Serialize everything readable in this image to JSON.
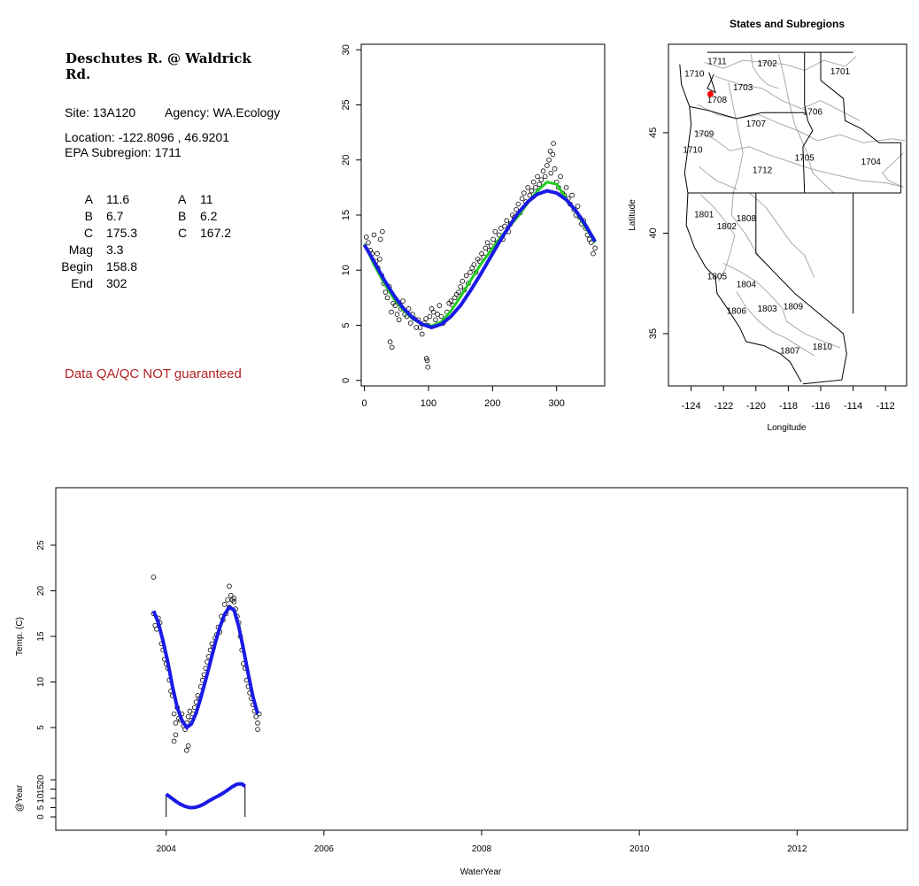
{
  "site": {
    "title": "Deschutes R. @ Waldrick Rd.",
    "site_label": "Site: 13A120",
    "agency_label": "Agency: WA.Ecology",
    "location_label": "Location: -122.8096 , 46.9201",
    "subregion_label": "EPA Subregion: 1711"
  },
  "params": {
    "rows": [
      {
        "name": "A",
        "v1": "11.6",
        "name2": "A",
        "v2": "11"
      },
      {
        "name": "B",
        "v1": "6.7",
        "name2": "B",
        "v2": "6.2"
      },
      {
        "name": "C",
        "v1": "175.3",
        "name2": "C",
        "v2": "167.2"
      },
      {
        "name": "Mag",
        "v1": "3.3",
        "name2": "",
        "v2": ""
      },
      {
        "name": "Begin",
        "v1": "158.8",
        "name2": "",
        "v2": ""
      },
      {
        "name": "End",
        "v1": "302",
        "name2": "",
        "v2": ""
      }
    ]
  },
  "disclaimer": "Data QA/QC NOT guaranteed",
  "colors": {
    "points": "#000000",
    "fit_blue": "#1a1ae6",
    "fit_green": "#22cc22",
    "site_marker": "#ff0000",
    "disclaimer": "#b22222",
    "map_lines": "#aaaaaa"
  },
  "chart_data": [
    {
      "type": "scatter",
      "title": "",
      "xlabel": "",
      "ylabel": "",
      "xlim": [
        -5,
        375
      ],
      "ylim": [
        -0.5,
        30.5
      ],
      "xticks": [
        0,
        100,
        200,
        300
      ],
      "yticks": [
        0,
        5,
        10,
        15,
        20,
        25,
        30
      ],
      "points": {
        "x": [
          3,
          6,
          9,
          12,
          15,
          18,
          21,
          24,
          27,
          30,
          33,
          36,
          39,
          42,
          45,
          48,
          51,
          54,
          57,
          60,
          63,
          66,
          69,
          72,
          75,
          78,
          81,
          84,
          87,
          90,
          93,
          96,
          99,
          102,
          105,
          108,
          111,
          114,
          117,
          120,
          123,
          126,
          129,
          132,
          135,
          138,
          141,
          144,
          147,
          150,
          153,
          156,
          159,
          162,
          165,
          168,
          171,
          174,
          177,
          180,
          183,
          186,
          189,
          192,
          195,
          198,
          201,
          204,
          207,
          210,
          213,
          216,
          219,
          222,
          225,
          228,
          231,
          234,
          237,
          240,
          243,
          246,
          249,
          252,
          255,
          258,
          261,
          264,
          267,
          270,
          273,
          276,
          279,
          282,
          285,
          288,
          291,
          294,
          297,
          300,
          303,
          306,
          309,
          312,
          315,
          318,
          321,
          324,
          327,
          330,
          333,
          336,
          339,
          342,
          345,
          348,
          351,
          354,
          357,
          360,
          40,
          43,
          97,
          99,
          98,
          20,
          25,
          28,
          295,
          290
        ],
        "y": [
          13,
          12.5,
          11.8,
          11.5,
          13.2,
          10.8,
          10.2,
          11,
          9.5,
          8.8,
          8,
          7.5,
          8.5,
          6.2,
          7,
          6.8,
          6,
          5.5,
          6.5,
          7.2,
          6,
          5.8,
          6.5,
          5.2,
          6,
          5.6,
          4.8,
          5.5,
          4.8,
          4.2,
          5.2,
          5.6,
          5,
          5.8,
          6.5,
          6.2,
          5.5,
          6,
          6.8,
          5.8,
          5.2,
          5.5,
          6.2,
          7,
          7.2,
          6.8,
          7.5,
          7.8,
          8,
          8.5,
          9,
          8.2,
          9.5,
          8.8,
          9.8,
          10.2,
          10.5,
          9.8,
          11,
          10.8,
          11.5,
          11.2,
          12,
          12.5,
          11.8,
          12.2,
          12.8,
          13.5,
          12.5,
          13.2,
          13.8,
          12.8,
          14,
          14.5,
          13.5,
          14.2,
          15,
          14.8,
          15.5,
          16,
          15.2,
          16.5,
          17,
          16.2,
          17.5,
          16.8,
          17.2,
          18,
          17.5,
          18.5,
          17.8,
          18.2,
          19,
          18.5,
          19.5,
          20,
          18.8,
          20.5,
          19.2,
          18,
          17.5,
          18.5,
          17,
          16.8,
          17.5,
          16.5,
          16,
          16.8,
          15.5,
          15,
          15.8,
          14.8,
          14.2,
          14.5,
          13.8,
          13.2,
          12.8,
          12.5,
          11.5,
          12,
          3.5,
          3,
          2,
          1.2,
          1.8,
          11.5,
          12.8,
          13.5,
          21.5,
          20.8
        ]
      },
      "series": [
        {
          "x": [
            0,
            15,
            30,
            45,
            60,
            75,
            90,
            105,
            120,
            135,
            150,
            165,
            180,
            195,
            210,
            225,
            240,
            255,
            270,
            285,
            300,
            315,
            330,
            345,
            360
          ],
          "y": [
            12.4,
            10.5,
            8.9,
            7.5,
            6.4,
            5.6,
            5.1,
            4.95,
            5.3,
            6.3,
            7.6,
            9.0,
            10.4,
            11.6,
            12.8,
            13.9,
            14.9,
            16.1,
            17.2,
            18.0,
            17.8,
            16.5,
            15.3,
            13.9,
            12.5
          ]
        },
        {
          "x": [
            0,
            15,
            30,
            45,
            60,
            75,
            90,
            105,
            120,
            135,
            150,
            165,
            180,
            195,
            210,
            225,
            240,
            255,
            270,
            285,
            300,
            315,
            330,
            345,
            360
          ],
          "y": [
            12.3,
            10.8,
            9.2,
            7.8,
            6.6,
            5.7,
            5.1,
            4.8,
            5.1,
            5.8,
            6.8,
            8.1,
            9.5,
            11.0,
            12.5,
            13.9,
            15.2,
            16.2,
            16.9,
            17.2,
            17.0,
            16.4,
            15.4,
            14.1,
            12.6
          ]
        }
      ]
    },
    {
      "type": "scatter",
      "title": "States and Subregions",
      "xlabel": "Longitude",
      "ylabel": "Latitude",
      "xlim": [
        -125.4,
        -110.7
      ],
      "ylim": [
        32.4,
        49.4
      ],
      "xticks": [
        -124,
        -122,
        -120,
        -118,
        -116,
        -114,
        -112
      ],
      "yticks": [
        35,
        40,
        45
      ],
      "regions": [
        {
          "label": "1711",
          "lon": -122.4,
          "lat": 48.4
        },
        {
          "label": "1702",
          "lon": -119.3,
          "lat": 48.3
        },
        {
          "label": "1710",
          "lon": -123.8,
          "lat": 47.8
        },
        {
          "label": "1701",
          "lon": -114.8,
          "lat": 47.9
        },
        {
          "label": "1703",
          "lon": -120.8,
          "lat": 47.1
        },
        {
          "label": "1708",
          "lon": -122.4,
          "lat": 46.5
        },
        {
          "label": "1706",
          "lon": -116.5,
          "lat": 45.9
        },
        {
          "label": "1707",
          "lon": -120.0,
          "lat": 45.3
        },
        {
          "label": "1709",
          "lon": -123.2,
          "lat": 44.8
        },
        {
          "label": "1710",
          "lon": -123.9,
          "lat": 44.0
        },
        {
          "label": "1705",
          "lon": -117.0,
          "lat": 43.6
        },
        {
          "label": "1704",
          "lon": -112.9,
          "lat": 43.4
        },
        {
          "label": "1712",
          "lon": -119.6,
          "lat": 43.0
        },
        {
          "label": "1801",
          "lon": -123.2,
          "lat": 40.8
        },
        {
          "label": "1808",
          "lon": -120.6,
          "lat": 40.6
        },
        {
          "label": "1802",
          "lon": -121.8,
          "lat": 40.2
        },
        {
          "label": "1805",
          "lon": -122.4,
          "lat": 37.7
        },
        {
          "label": "1804",
          "lon": -120.6,
          "lat": 37.3
        },
        {
          "label": "1809",
          "lon": -117.7,
          "lat": 36.2
        },
        {
          "label": "1806",
          "lon": -121.2,
          "lat": 36.0
        },
        {
          "label": "1803",
          "lon": -119.3,
          "lat": 36.1
        },
        {
          "label": "1810",
          "lon": -115.9,
          "lat": 34.2
        },
        {
          "label": "1807",
          "lon": -117.9,
          "lat": 34.0
        }
      ],
      "site": {
        "lon": -122.8096,
        "lat": 46.9201
      }
    },
    {
      "type": "scatter",
      "title": "",
      "xlabel": "WaterYear",
      "ylabel": "Temp. (C)",
      "sublabel": "@Year",
      "xlim": [
        2002.6,
        2013.4
      ],
      "ylim": [
        0,
        30
      ],
      "xticks": [
        2004,
        2006,
        2008,
        2010,
        2012
      ],
      "yticks": [
        5,
        10,
        15,
        20,
        25
      ],
      "subyticks": [
        0,
        5,
        10,
        15,
        20
      ],
      "points": {
        "x": [
          2003.84,
          2003.86,
          2003.88,
          2003.9,
          2003.92,
          2003.94,
          2003.96,
          2003.98,
          2004.0,
          2004.02,
          2004.04,
          2004.06,
          2004.08,
          2004.1,
          2004.12,
          2004.14,
          2004.16,
          2004.18,
          2004.2,
          2004.22,
          2004.24,
          2004.26,
          2004.28,
          2004.3,
          2004.32,
          2004.34,
          2004.36,
          2004.38,
          2004.4,
          2004.42,
          2004.44,
          2004.46,
          2004.48,
          2004.5,
          2004.52,
          2004.54,
          2004.56,
          2004.58,
          2004.6,
          2004.62,
          2004.64,
          2004.66,
          2004.68,
          2004.7,
          2004.72,
          2004.74,
          2004.76,
          2004.78,
          2004.8,
          2004.82,
          2004.84,
          2004.86,
          2004.88,
          2004.9,
          2004.92,
          2004.94,
          2004.96,
          2004.98,
          2005.0,
          2005.02,
          2005.04,
          2005.06,
          2005.08,
          2005.1,
          2005.12,
          2005.14,
          2005.16,
          2005.18,
          2003.84,
          2004.1,
          2004.12,
          2004.26,
          2004.28,
          2004.8,
          2004.86,
          2005.16
        ],
        "y": [
          17.5,
          16.2,
          15.8,
          17,
          16.5,
          14.2,
          13.5,
          12.5,
          12,
          11.5,
          10.2,
          9,
          8.5,
          6.5,
          5.5,
          7.2,
          6,
          5.8,
          6.5,
          5.2,
          4.8,
          5.5,
          6.2,
          6.8,
          5.8,
          6.5,
          7.2,
          7.8,
          8.5,
          8.2,
          9.5,
          10.2,
          10.8,
          11.5,
          12.2,
          12.8,
          13.5,
          14.2,
          13.8,
          14.8,
          15.2,
          16,
          15.5,
          17.2,
          16.8,
          18.5,
          17.5,
          19,
          18.2,
          19.5,
          19,
          18.8,
          18,
          17.2,
          16.5,
          15,
          13.5,
          12,
          11.5,
          10.2,
          9.5,
          8.8,
          8.2,
          7.5,
          6.8,
          6.2,
          5.5,
          6.5,
          21.5,
          3.5,
          4.2,
          2.5,
          3,
          20.5,
          19.2,
          4.8
        ]
      },
      "fit": {
        "x": [
          2003.84,
          2003.9,
          2003.96,
          2004.02,
          2004.08,
          2004.14,
          2004.2,
          2004.26,
          2004.32,
          2004.38,
          2004.44,
          2004.5,
          2004.56,
          2004.62,
          2004.68,
          2004.74,
          2004.8,
          2004.86,
          2004.92,
          2004.98,
          2005.04,
          2005.1,
          2005.16
        ],
        "y": [
          17.8,
          16.5,
          14.5,
          12.2,
          9.5,
          7.2,
          5.8,
          5.0,
          5.4,
          6.6,
          8.3,
          10.2,
          12.2,
          14.2,
          16.0,
          17.4,
          18.2,
          17.9,
          16.1,
          13.6,
          10.9,
          8.4,
          6.5
        ]
      },
      "annual": {
        "x": [
          2004.0,
          2004.06,
          2004.12,
          2004.18,
          2004.24,
          2004.3,
          2004.36,
          2004.42,
          2004.48,
          2004.54,
          2004.6,
          2004.66,
          2004.72,
          2004.78,
          2004.84,
          2004.9,
          2004.96,
          2005.0
        ],
        "y": [
          12.3,
          10.4,
          8.5,
          6.9,
          5.7,
          5.0,
          5.1,
          5.8,
          7.0,
          8.6,
          10.0,
          11.3,
          12.8,
          14.5,
          16.3,
          17.7,
          17.8,
          16.5
        ]
      }
    }
  ]
}
